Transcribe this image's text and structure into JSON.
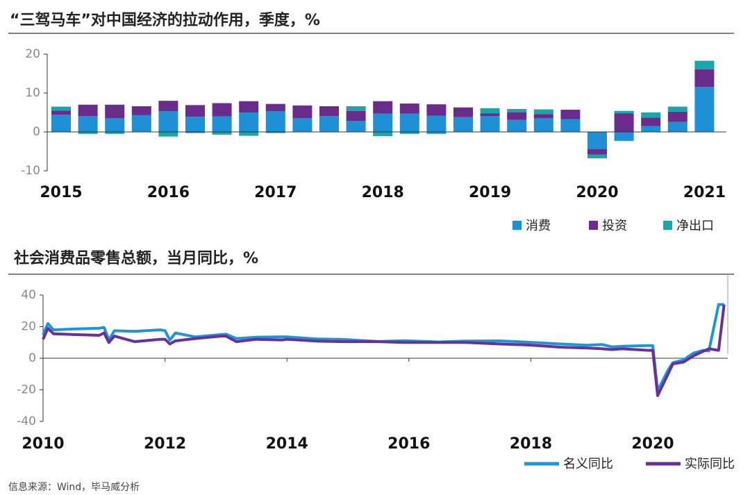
{
  "chart_data": [
    {
      "type": "bar",
      "title": "“三驾马车”对中国经济的拉动作用，季度，%",
      "categories": [
        "2015",
        null,
        null,
        null,
        "2016",
        null,
        null,
        null,
        "2017",
        null,
        null,
        null,
        "2018",
        null,
        null,
        null,
        "2019",
        null,
        null,
        null,
        "2020",
        null,
        null,
        null,
        "2021"
      ],
      "series": [
        {
          "name": "消费",
          "color": "#1f8fd6",
          "values": [
            4.4,
            4.1,
            3.5,
            4.3,
            5.3,
            3.9,
            4.0,
            5.0,
            5.3,
            3.5,
            4.1,
            2.8,
            4.7,
            4.7,
            4.2,
            3.8,
            4.1,
            3.1,
            3.5,
            3.3,
            -4.4,
            -2.3,
            1.5,
            2.6,
            11.6
          ]
        },
        {
          "name": "投资",
          "color": "#6a2c8a",
          "values": [
            1.1,
            2.9,
            3.5,
            2.3,
            2.7,
            3.0,
            3.4,
            2.9,
            1.9,
            3.3,
            2.5,
            2.6,
            3.2,
            2.6,
            2.9,
            2.5,
            0.7,
            1.9,
            1.1,
            2.4,
            -1.4,
            4.8,
            2.2,
            2.6,
            4.5
          ]
        },
        {
          "name": "净出口",
          "color": "#1aa5a8",
          "values": [
            1.0,
            -0.5,
            -0.5,
            0,
            -1.2,
            -0.3,
            -0.7,
            -1.0,
            -0.3,
            0,
            0,
            1.2,
            -1.1,
            -0.5,
            -0.5,
            0,
            1.3,
            0.9,
            1.2,
            0,
            -1.0,
            0.6,
            1.3,
            1.3,
            2.2
          ]
        }
      ],
      "ylim": [
        -10,
        20
      ],
      "yticks": [
        -10,
        0,
        10,
        20
      ],
      "stacked": true,
      "legend": "bottom-right"
    },
    {
      "type": "line",
      "title": "社会消费品零售总额，当月同比，%",
      "x": [
        2010.0,
        2010.08,
        2010.17,
        2010.5,
        2010.92,
        2011.0,
        2011.08,
        2011.17,
        2011.5,
        2011.92,
        2012.0,
        2012.08,
        2012.17,
        2012.5,
        2012.92,
        2013.0,
        2013.17,
        2013.5,
        2013.92,
        2014.0,
        2014.5,
        2014.92,
        2015.5,
        2015.92,
        2016.5,
        2016.92,
        2017.5,
        2017.92,
        2018.5,
        2018.92,
        2019.17,
        2019.33,
        2019.5,
        2019.92,
        2020.0,
        2020.08,
        2020.25,
        2020.33,
        2020.5,
        2020.67,
        2020.83,
        2020.92,
        2021.08,
        2021.17
      ],
      "series": [
        {
          "name": "名义同比",
          "color": "#1f95d6",
          "values": [
            15,
            22,
            18,
            18.5,
            19,
            19.5,
            11.6,
            17.4,
            17,
            18,
            17.5,
            11.5,
            16,
            13.5,
            15,
            15.2,
            12.5,
            13.3,
            13.6,
            13.5,
            12.2,
            11.9,
            10.6,
            11.1,
            10.3,
            10.9,
            11,
            10.2,
            9,
            8.2,
            8.7,
            7.2,
            7.6,
            8,
            8,
            -20.5,
            -7.5,
            -2.8,
            -1.1,
            3.3,
            5,
            4.6,
            34,
            34
          ]
        },
        {
          "name": "实际同比",
          "color": "#6b2f9a",
          "values": [
            12,
            19,
            15.5,
            15,
            14.5,
            16,
            10,
            14,
            10.5,
            12,
            12,
            9,
            11,
            12.5,
            14,
            14,
            10.5,
            12,
            11.5,
            12,
            10.8,
            10.5,
            10.5,
            10,
            10,
            10,
            9,
            8.5,
            7,
            6.5,
            6,
            5.5,
            6,
            5,
            5,
            -23.7,
            -10,
            -3.5,
            -2.5,
            1.5,
            4.5,
            6,
            5,
            34
          ]
        }
      ],
      "xlim": [
        2010,
        2021.23
      ],
      "xticks": [
        2010,
        2012,
        2014,
        2016,
        2018,
        2020
      ],
      "ylim": [
        -40,
        40
      ],
      "yticks": [
        -40,
        -20,
        0,
        20,
        40
      ],
      "legend": "bottom-right"
    }
  ],
  "source": "信息来源：Wind，毕马威分析"
}
